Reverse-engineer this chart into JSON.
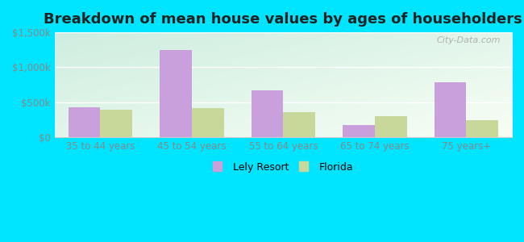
{
  "title": "Breakdown of mean house values by ages of householders",
  "categories": [
    "35 to 44 years",
    "45 to 54 years",
    "55 to 64 years",
    "65 to 74 years",
    "75 years+"
  ],
  "lely_resort": [
    430000,
    1250000,
    670000,
    180000,
    790000
  ],
  "florida": [
    390000,
    420000,
    360000,
    300000,
    250000
  ],
  "lely_color": "#c9a0dc",
  "florida_color": "#c8d89a",
  "ylim": [
    0,
    1500000
  ],
  "yticks": [
    0,
    500000,
    1000000,
    1500000
  ],
  "ytick_labels": [
    "$0",
    "$500k",
    "$1,000k",
    "$1,500k"
  ],
  "legend_labels": [
    "Lely Resort",
    "Florida"
  ],
  "bar_width": 0.35,
  "background_outer": "#00e5ff",
  "title_fontsize": 13,
  "watermark": "City-Data.com"
}
